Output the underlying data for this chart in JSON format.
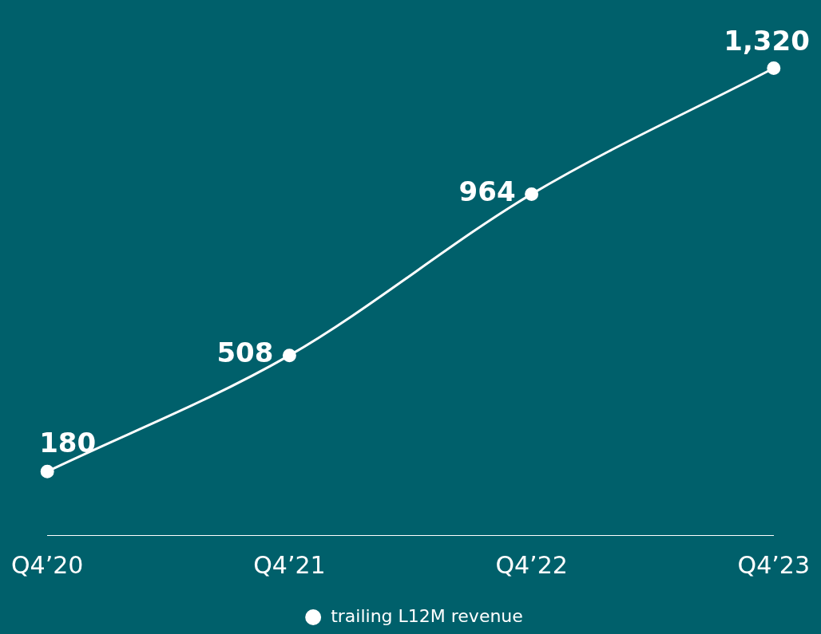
{
  "chart_data": {
    "type": "line",
    "categories": [
      "Q4’20",
      "Q4’21",
      "Q4’22",
      "Q4’23"
    ],
    "series": [
      {
        "name": "trailing L12M revenue",
        "color": "#ffffff",
        "values": [
          180,
          508,
          964,
          1320
        ],
        "value_labels": [
          "180",
          "508",
          "964",
          "1,320"
        ]
      }
    ],
    "marker": "circle",
    "line_style": "solid",
    "grid": false,
    "legend": "bottom"
  }
}
